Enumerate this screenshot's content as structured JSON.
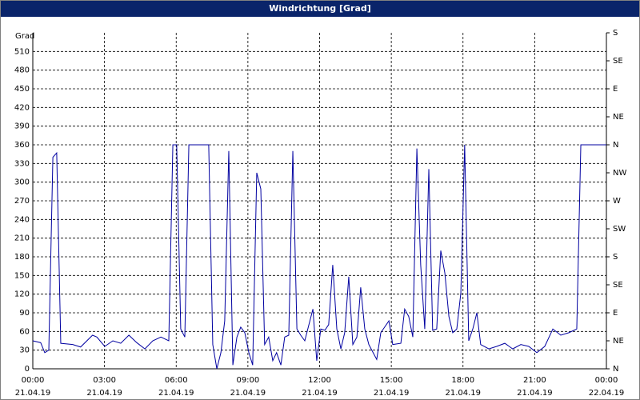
{
  "window_title": "Windrichtung [Grad]",
  "chart_data": {
    "type": "line",
    "ylabel": "Grad",
    "x": [
      0,
      0.33,
      0.5,
      0.67,
      0.84,
      1.0,
      1.17,
      1.67,
      2.0,
      2.5,
      2.68,
      3.01,
      3.35,
      3.68,
      4.02,
      4.35,
      4.69,
      5.02,
      5.36,
      5.69,
      5.86,
      6.02,
      6.19,
      6.36,
      6.53,
      7.36,
      7.53,
      7.7,
      7.87,
      8.03,
      8.2,
      8.37,
      8.54,
      8.7,
      8.87,
      9.04,
      9.2,
      9.37,
      9.54,
      9.7,
      9.87,
      10.04,
      10.2,
      10.38,
      10.54,
      10.71,
      10.88,
      11.05,
      11.21,
      11.38,
      11.72,
      11.88,
      12.05,
      12.22,
      12.38,
      12.55,
      12.72,
      12.89,
      13.05,
      13.22,
      13.39,
      13.56,
      13.72,
      13.89,
      14.06,
      14.39,
      14.56,
      14.9,
      15.06,
      15.4,
      15.56,
      15.73,
      15.9,
      16.07,
      16.23,
      16.4,
      16.57,
      16.73,
      16.9,
      17.07,
      17.24,
      17.41,
      17.57,
      17.74,
      17.91,
      18.07,
      18.24,
      18.41,
      18.58,
      18.74,
      19.08,
      19.41,
      19.75,
      20.08,
      20.42,
      20.75,
      21.09,
      21.42,
      21.76,
      22.09,
      22.43,
      22.76,
      22.93,
      24
    ],
    "series": [
      {
        "name": "Windrichtung",
        "color": "#0000a0",
        "values": [
          45,
          42,
          26,
          30,
          340,
          347,
          41,
          39,
          35,
          54,
          51,
          36,
          45,
          41,
          54,
          42,
          32,
          45,
          51,
          45,
          360,
          360,
          64,
          51,
          360,
          360,
          39,
          0,
          26,
          77,
          350,
          6,
          51,
          67,
          58,
          26,
          6,
          315,
          289,
          39,
          51,
          13,
          26,
          6,
          51,
          54,
          350,
          64,
          54,
          45,
          96,
          13,
          64,
          62,
          71,
          167,
          64,
          32,
          58,
          148,
          39,
          51,
          131,
          64,
          39,
          15,
          58,
          77,
          39,
          41,
          96,
          84,
          51,
          354,
          167,
          64,
          321,
          62,
          64,
          190,
          154,
          84,
          58,
          64,
          122,
          360,
          45,
          64,
          90,
          39,
          32,
          36,
          41,
          32,
          39,
          36,
          26,
          36,
          64,
          54,
          58,
          64,
          360,
          360
        ]
      }
    ],
    "xlim": [
      0,
      24
    ],
    "xticks": [
      {
        "value": 0,
        "label": "00:00"
      },
      {
        "value": 3,
        "label": "03:00"
      },
      {
        "value": 6,
        "label": "06:00"
      },
      {
        "value": 9,
        "label": "09:00"
      },
      {
        "value": 12,
        "label": "12:00"
      },
      {
        "value": 15,
        "label": "15:00"
      },
      {
        "value": 18,
        "label": "18:00"
      },
      {
        "value": 21,
        "label": "21:00"
      },
      {
        "value": 24,
        "label": "00:00"
      }
    ],
    "xtick_dates": [
      "21.04.19",
      "21.04.19",
      "21.04.19",
      "21.04.19",
      "21.04.19",
      "21.04.19",
      "21.04.19",
      "21.04.19",
      "22.04.19"
    ],
    "ylim": [
      0,
      540
    ],
    "yticks": [
      0,
      30,
      60,
      90,
      120,
      150,
      180,
      210,
      240,
      270,
      300,
      330,
      360,
      390,
      420,
      450,
      480,
      510
    ],
    "y2lim": [
      0,
      540
    ],
    "y2ticks": [
      {
        "value": 0,
        "label": "N"
      },
      {
        "value": 45,
        "label": "NE"
      },
      {
        "value": 90,
        "label": "E"
      },
      {
        "value": 135,
        "label": "SE"
      },
      {
        "value": 180,
        "label": "S"
      },
      {
        "value": 225,
        "label": "SW"
      },
      {
        "value": 270,
        "label": "W"
      },
      {
        "value": 315,
        "label": "NW"
      },
      {
        "value": 360,
        "label": "N"
      },
      {
        "value": 405,
        "label": "NE"
      },
      {
        "value": 450,
        "label": "E"
      },
      {
        "value": 495,
        "label": "SE"
      },
      {
        "value": 540,
        "label": "S"
      }
    ],
    "grid": true
  }
}
